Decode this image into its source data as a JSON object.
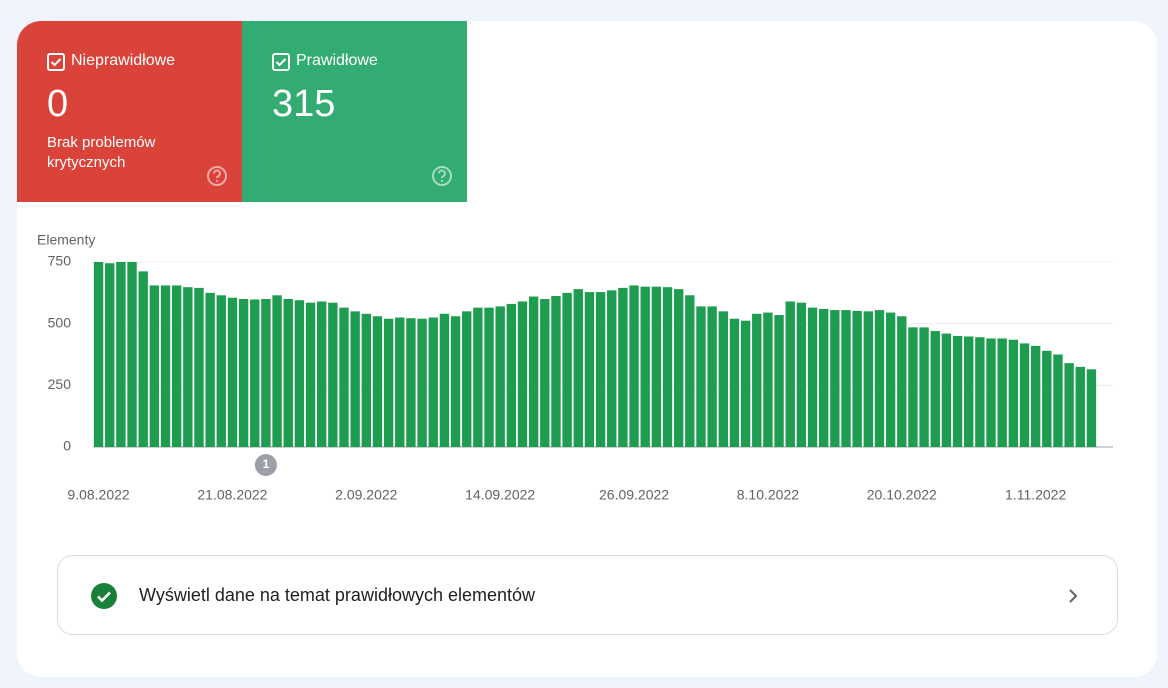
{
  "cards": [
    {
      "label": "Nieprawidłowe",
      "count": "0",
      "note": "Brak problemów krytycznych"
    },
    {
      "label": "Prawidłowe",
      "count": "315"
    }
  ],
  "chart_data": {
    "type": "bar",
    "y_label": "Elementy",
    "color": "#1e9c50",
    "ylim": [
      0,
      750
    ],
    "yticks": [
      0,
      250,
      500,
      750
    ],
    "grid": true,
    "categories": [
      "9.08.2022",
      null,
      null,
      null,
      null,
      null,
      null,
      null,
      null,
      null,
      null,
      null,
      "21.08.2022",
      null,
      null,
      null,
      null,
      null,
      null,
      null,
      null,
      null,
      null,
      null,
      "2.09.2022",
      null,
      null,
      null,
      null,
      null,
      null,
      null,
      null,
      null,
      null,
      null,
      "14.09.2022",
      null,
      null,
      null,
      null,
      null,
      null,
      null,
      null,
      null,
      null,
      null,
      "26.09.2022",
      null,
      null,
      null,
      null,
      null,
      null,
      null,
      null,
      null,
      null,
      null,
      "8.10.2022",
      null,
      null,
      null,
      null,
      null,
      null,
      null,
      null,
      null,
      null,
      null,
      "20.10.2022",
      null,
      null,
      null,
      null,
      null,
      null,
      null,
      null,
      null,
      null,
      null,
      "1.11.2022",
      null,
      null,
      null,
      null,
      null
    ],
    "values": [
      750,
      745,
      750,
      750,
      712,
      655,
      655,
      655,
      648,
      645,
      625,
      615,
      605,
      600,
      598,
      600,
      615,
      600,
      595,
      585,
      590,
      585,
      565,
      550,
      540,
      530,
      520,
      525,
      522,
      520,
      525,
      540,
      530,
      550,
      565,
      565,
      570,
      580,
      590,
      610,
      600,
      612,
      625,
      640,
      628,
      628,
      635,
      645,
      655,
      650,
      650,
      648,
      640,
      615,
      570,
      570,
      550,
      520,
      512,
      540,
      545,
      535,
      590,
      585,
      565,
      560,
      555,
      555,
      552,
      550,
      555,
      545,
      530,
      485,
      485,
      470,
      460,
      450,
      448,
      445,
      440,
      440,
      435,
      420,
      410,
      390,
      375,
      340,
      325,
      315
    ],
    "annotations": [
      {
        "index": 15,
        "text": "1"
      }
    ]
  },
  "link": {
    "text": "Wyświetl dane na temat prawidłowych elementów"
  }
}
